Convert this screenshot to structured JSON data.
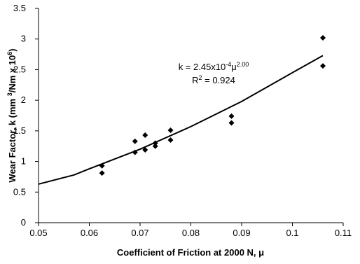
{
  "chart_data": {
    "type": "scatter",
    "xlabel": "Coefficient of Friction at 2000 N, μ",
    "ylabel": [
      "Wear Factor, k (mm ",
      "3",
      "/Nm x 10",
      "6",
      ")"
    ],
    "annotation": {
      "equation": [
        "k = 2.45x10",
        "-4",
        "μ",
        "2.00"
      ],
      "r2": [
        "R",
        "2",
        " = 0.924"
      ]
    },
    "points": {
      "color": "#000000",
      "x": [
        0.0625,
        0.0625,
        0.069,
        0.069,
        0.071,
        0.071,
        0.073,
        0.073,
        0.076,
        0.076,
        0.088,
        0.088,
        0.106,
        0.106
      ],
      "y": [
        0.93,
        0.81,
        1.33,
        1.15,
        1.43,
        1.19,
        1.3,
        1.25,
        1.51,
        1.35,
        1.74,
        1.63,
        3.02,
        2.56
      ]
    },
    "fit": {
      "color": "#000000",
      "x": [
        0.05,
        0.057,
        0.06,
        0.07,
        0.08,
        0.09,
        0.1,
        0.106
      ],
      "y": [
        0.63,
        0.78,
        0.88,
        1.2,
        1.57,
        1.98,
        2.45,
        2.73
      ]
    },
    "xlim": [
      0.05,
      0.11
    ],
    "xticks": [
      0.05,
      0.06,
      0.07,
      0.08,
      0.09,
      0.1,
      0.11
    ],
    "ylim": [
      0,
      3.5
    ],
    "yticks": [
      0,
      0.5,
      1,
      1.5,
      2,
      2.5,
      3,
      3.5
    ],
    "grid": false
  }
}
